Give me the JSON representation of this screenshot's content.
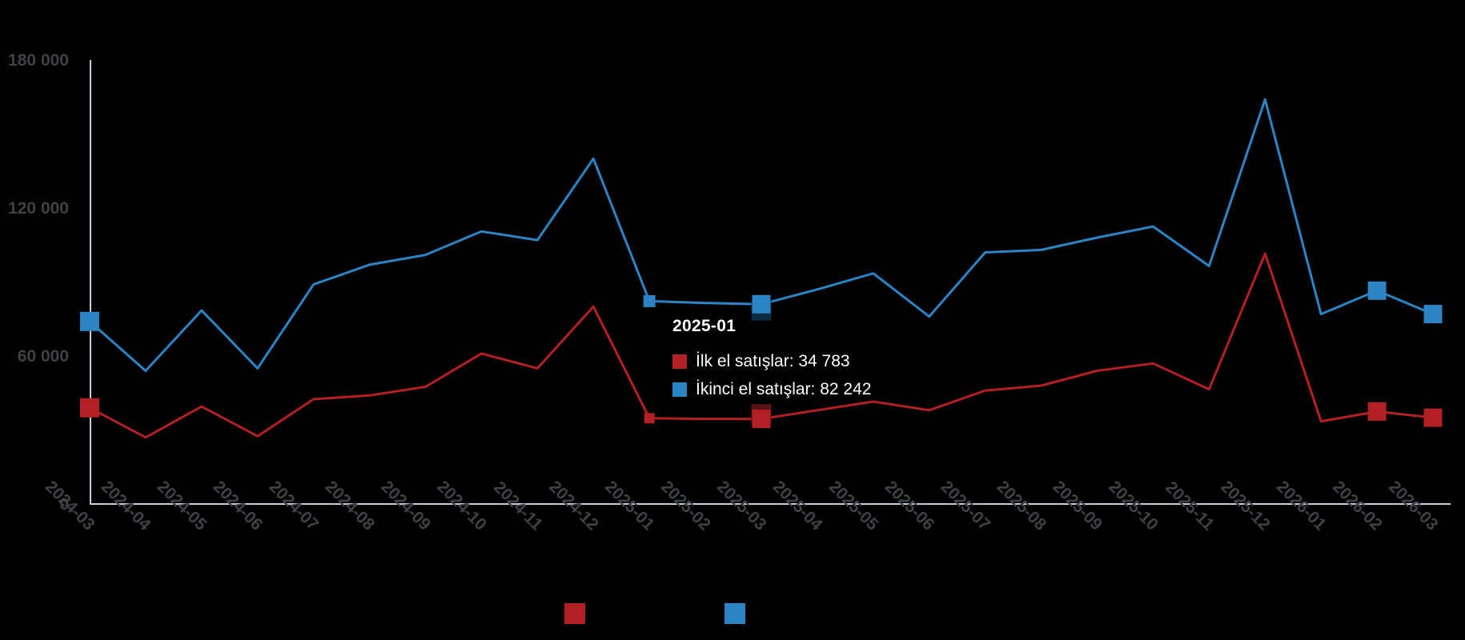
{
  "colors": {
    "background": "#000000",
    "axis_line": "#c9ccd6",
    "tick_label": "#3e4145",
    "first_hand": "#b22024",
    "second_hand": "#2b85c4",
    "marker_shadow_first": "#5a1113",
    "marker_shadow_second": "#0d2b40",
    "tooltip_text": "#ffffff",
    "legend_label": "#000000"
  },
  "chart_data": {
    "type": "line",
    "title": "",
    "xlabel": "",
    "ylabel": "",
    "x": [
      "2024-03",
      "2024-04",
      "2024-05",
      "2024-06",
      "2024-07",
      "2024-08",
      "2024-09",
      "2024-10",
      "2024-11",
      "2024-12",
      "2025-01",
      "2025-02",
      "2025-03",
      "2025-04",
      "2025-05",
      "2025-06",
      "2025-07",
      "2025-08",
      "2025-09",
      "2025-10",
      "2025-11",
      "2025-12",
      "2026-01",
      "2026-02",
      "2026-03"
    ],
    "series": [
      {
        "name": "İlk el satışlar",
        "color": "#b22024",
        "values": [
          39000,
          27000,
          39500,
          27500,
          42500,
          44000,
          47500,
          61000,
          55000,
          80000,
          34783,
          34500,
          34500,
          38000,
          41500,
          38000,
          46000,
          48000,
          54000,
          57000,
          46500,
          101500,
          33500,
          37500,
          35000
        ]
      },
      {
        "name": "İkinci el satışlar",
        "color": "#2b85c4",
        "values": [
          74000,
          54000,
          78500,
          55000,
          89000,
          97000,
          101000,
          110500,
          107000,
          140000,
          82242,
          81500,
          81000,
          87000,
          93500,
          76000,
          102000,
          103000,
          108000,
          112500,
          96500,
          164000,
          77000,
          86500,
          77000
        ]
      }
    ],
    "y_ticks": [
      {
        "value": 0,
        "label": "0"
      },
      {
        "value": 60000,
        "label": "60 000"
      },
      {
        "value": 120000,
        "label": "120 000"
      },
      {
        "value": 180000,
        "label": "180 000"
      }
    ],
    "ylim": [
      0,
      180000
    ],
    "grid": false,
    "x_label_rotation_deg": 45,
    "legend_position": "bottom",
    "markers": [
      {
        "series": 1,
        "index": 0,
        "size": 24,
        "shadow": 0
      },
      {
        "series": 0,
        "index": 0,
        "size": 24,
        "shadow": 0
      },
      {
        "series": 1,
        "index": 10,
        "size": 15,
        "shadow": 0
      },
      {
        "series": 0,
        "index": 10,
        "size": 13,
        "shadow": 0
      },
      {
        "series": 1,
        "index": 12,
        "size": 23,
        "shadow": 7
      },
      {
        "series": 0,
        "index": 12,
        "size": 23,
        "shadow": -7
      },
      {
        "series": 1,
        "index": 23,
        "size": 23,
        "shadow": 0
      },
      {
        "series": 1,
        "index": 24,
        "size": 23,
        "shadow": 0
      },
      {
        "series": 0,
        "index": 23,
        "size": 23,
        "shadow": 0
      },
      {
        "series": 0,
        "index": 24,
        "size": 23,
        "shadow": 0
      }
    ]
  },
  "tooltip": {
    "title": "2025-01",
    "rows": [
      {
        "text": "İlk el satışlar: 34 783",
        "label": "İlk el satışlar",
        "value": "34 783",
        "color": "#b22024"
      },
      {
        "text": "İkinci el satışlar: 82 242",
        "label": "İkinci el satışlar",
        "value": "82 242",
        "color": "#2b85c4"
      }
    ]
  },
  "legend": {
    "items": [
      {
        "label": "İlk el satışlar",
        "color": "#b22024"
      },
      {
        "label": "İkinci el satışlar",
        "color": "#2b85c4"
      }
    ]
  }
}
